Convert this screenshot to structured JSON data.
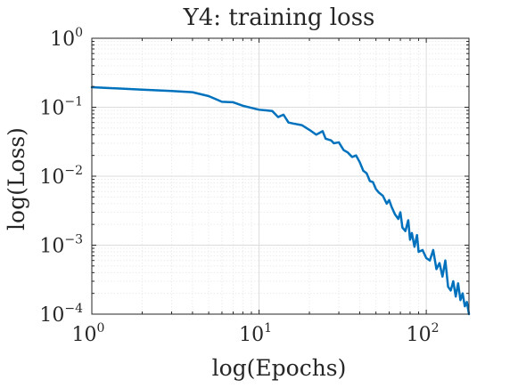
{
  "chart_data": {
    "type": "line",
    "title": "Y4: training loss",
    "xlabel": "log(Epochs)",
    "ylabel": "log(Loss)",
    "xscale": "log",
    "yscale": "log",
    "xlim": [
      1,
      180
    ],
    "ylim": [
      0.0001,
      1
    ],
    "grid": true,
    "minor_grid": true,
    "x_ticks": [
      {
        "value": 1,
        "base": "10",
        "exp": "0"
      },
      {
        "value": 10,
        "base": "10",
        "exp": "1"
      },
      {
        "value": 100,
        "base": "10",
        "exp": "2"
      }
    ],
    "y_ticks": [
      {
        "value": 1,
        "base": "10",
        "exp": "0"
      },
      {
        "value": 0.1,
        "base": "10",
        "exp": "−1"
      },
      {
        "value": 0.01,
        "base": "10",
        "exp": "−2"
      },
      {
        "value": 0.001,
        "base": "10",
        "exp": "−3"
      },
      {
        "value": 0.0001,
        "base": "10",
        "exp": "−4"
      }
    ],
    "series": [
      {
        "color": "#0072BD",
        "x": [
          1,
          2,
          3,
          4,
          5,
          6,
          7,
          8,
          9,
          10,
          11,
          12,
          13,
          14,
          15,
          16,
          18,
          20,
          22,
          24,
          25,
          27,
          28,
          30,
          32,
          34,
          36,
          38,
          40,
          42,
          44,
          46,
          48,
          50,
          52,
          55,
          58,
          60,
          62,
          65,
          68,
          70,
          72,
          75,
          78,
          80,
          82,
          85,
          88,
          90,
          95,
          100,
          105,
          110,
          115,
          120,
          125,
          130,
          135,
          140,
          145,
          150,
          155,
          160,
          165,
          170,
          175,
          180
        ],
        "y": [
          0.195,
          0.18,
          0.172,
          0.165,
          0.145,
          0.12,
          0.118,
          0.105,
          0.098,
          0.092,
          0.09,
          0.088,
          0.072,
          0.078,
          0.06,
          0.058,
          0.055,
          0.047,
          0.04,
          0.045,
          0.035,
          0.033,
          0.03,
          0.031,
          0.024,
          0.022,
          0.019,
          0.02,
          0.016,
          0.012,
          0.011,
          0.0085,
          0.0082,
          0.0065,
          0.0058,
          0.0052,
          0.004,
          0.0045,
          0.0036,
          0.0028,
          0.0024,
          0.003,
          0.0018,
          0.0016,
          0.0023,
          0.0012,
          0.0015,
          0.00095,
          0.0014,
          0.0008,
          0.00085,
          0.00065,
          0.0006,
          0.00085,
          0.00045,
          0.00055,
          0.00035,
          0.0006,
          0.00025,
          0.00022,
          0.0003,
          0.00018,
          0.00028,
          0.00016,
          0.0002,
          0.00013,
          0.00015,
          0.0001
        ]
      }
    ]
  }
}
